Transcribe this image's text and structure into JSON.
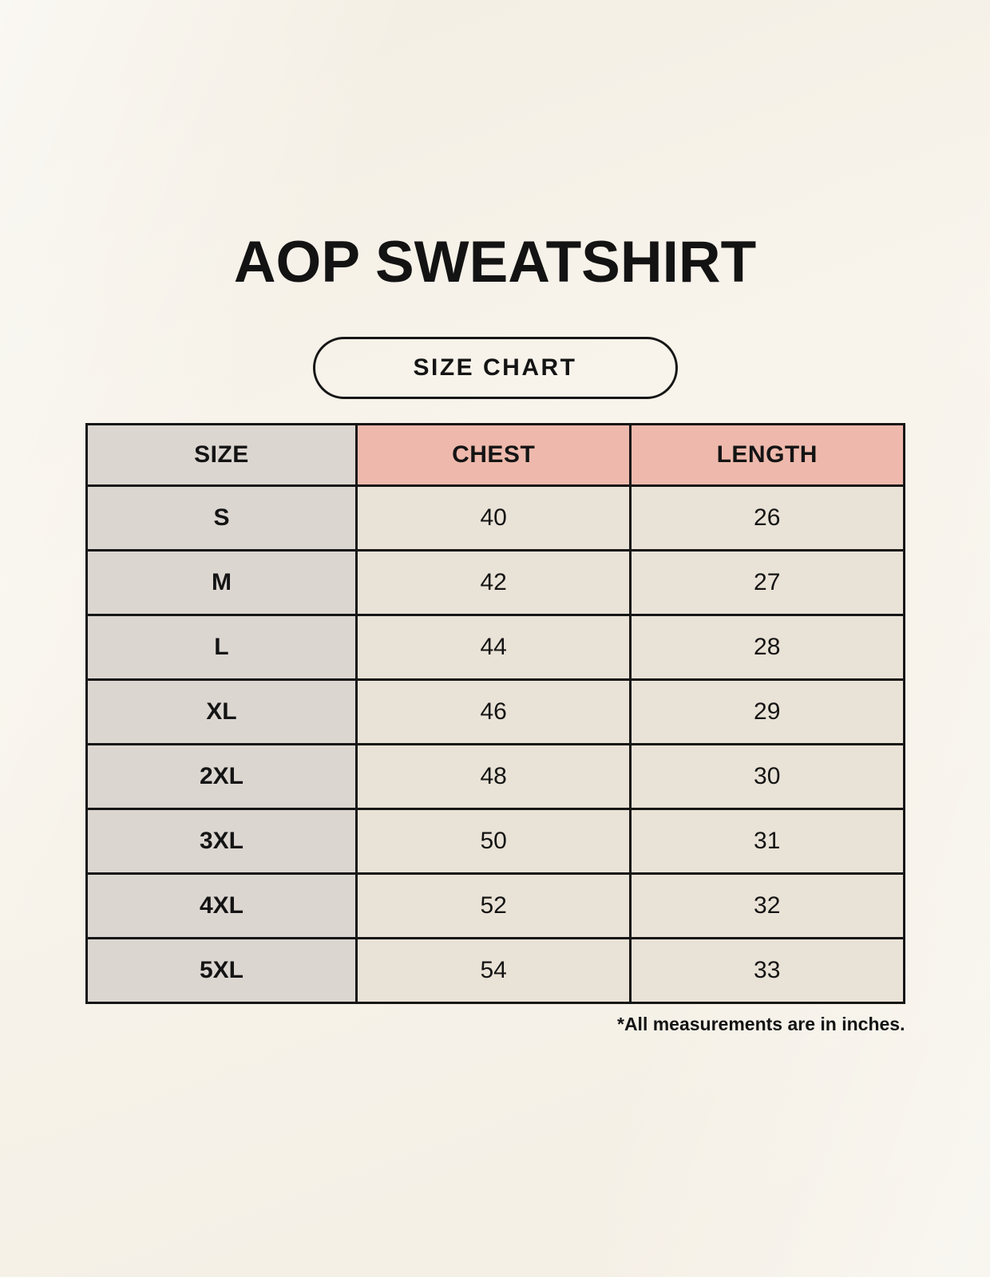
{
  "page": {
    "title": "AOP SWEATSHIRT",
    "badge_label": "SIZE CHART",
    "footnote": "*All measurements are in inches."
  },
  "chart_data": {
    "type": "table",
    "title": "AOP SWEATSHIRT",
    "subtitle": "SIZE CHART",
    "columns": [
      "SIZE",
      "CHEST",
      "LENGTH"
    ],
    "rows": [
      [
        "S",
        "40",
        "26"
      ],
      [
        "M",
        "42",
        "27"
      ],
      [
        "L",
        "44",
        "28"
      ],
      [
        "XL",
        "46",
        "29"
      ],
      [
        "2XL",
        "48",
        "30"
      ],
      [
        "3XL",
        "50",
        "31"
      ],
      [
        "4XL",
        "52",
        "32"
      ],
      [
        "5XL",
        "54",
        "33"
      ]
    ],
    "units_note": "*All measurements are in inches.",
    "layout": {
      "legend": "none",
      "grid": "full-borders"
    }
  },
  "colors": {
    "page_background": "#f8f4ec",
    "size_column_bg": "#dcd6d1",
    "header_accent_bg": "#eeb9ac",
    "data_cell_bg": "#e9e2d6",
    "border": "#161616",
    "text": "#141414"
  }
}
